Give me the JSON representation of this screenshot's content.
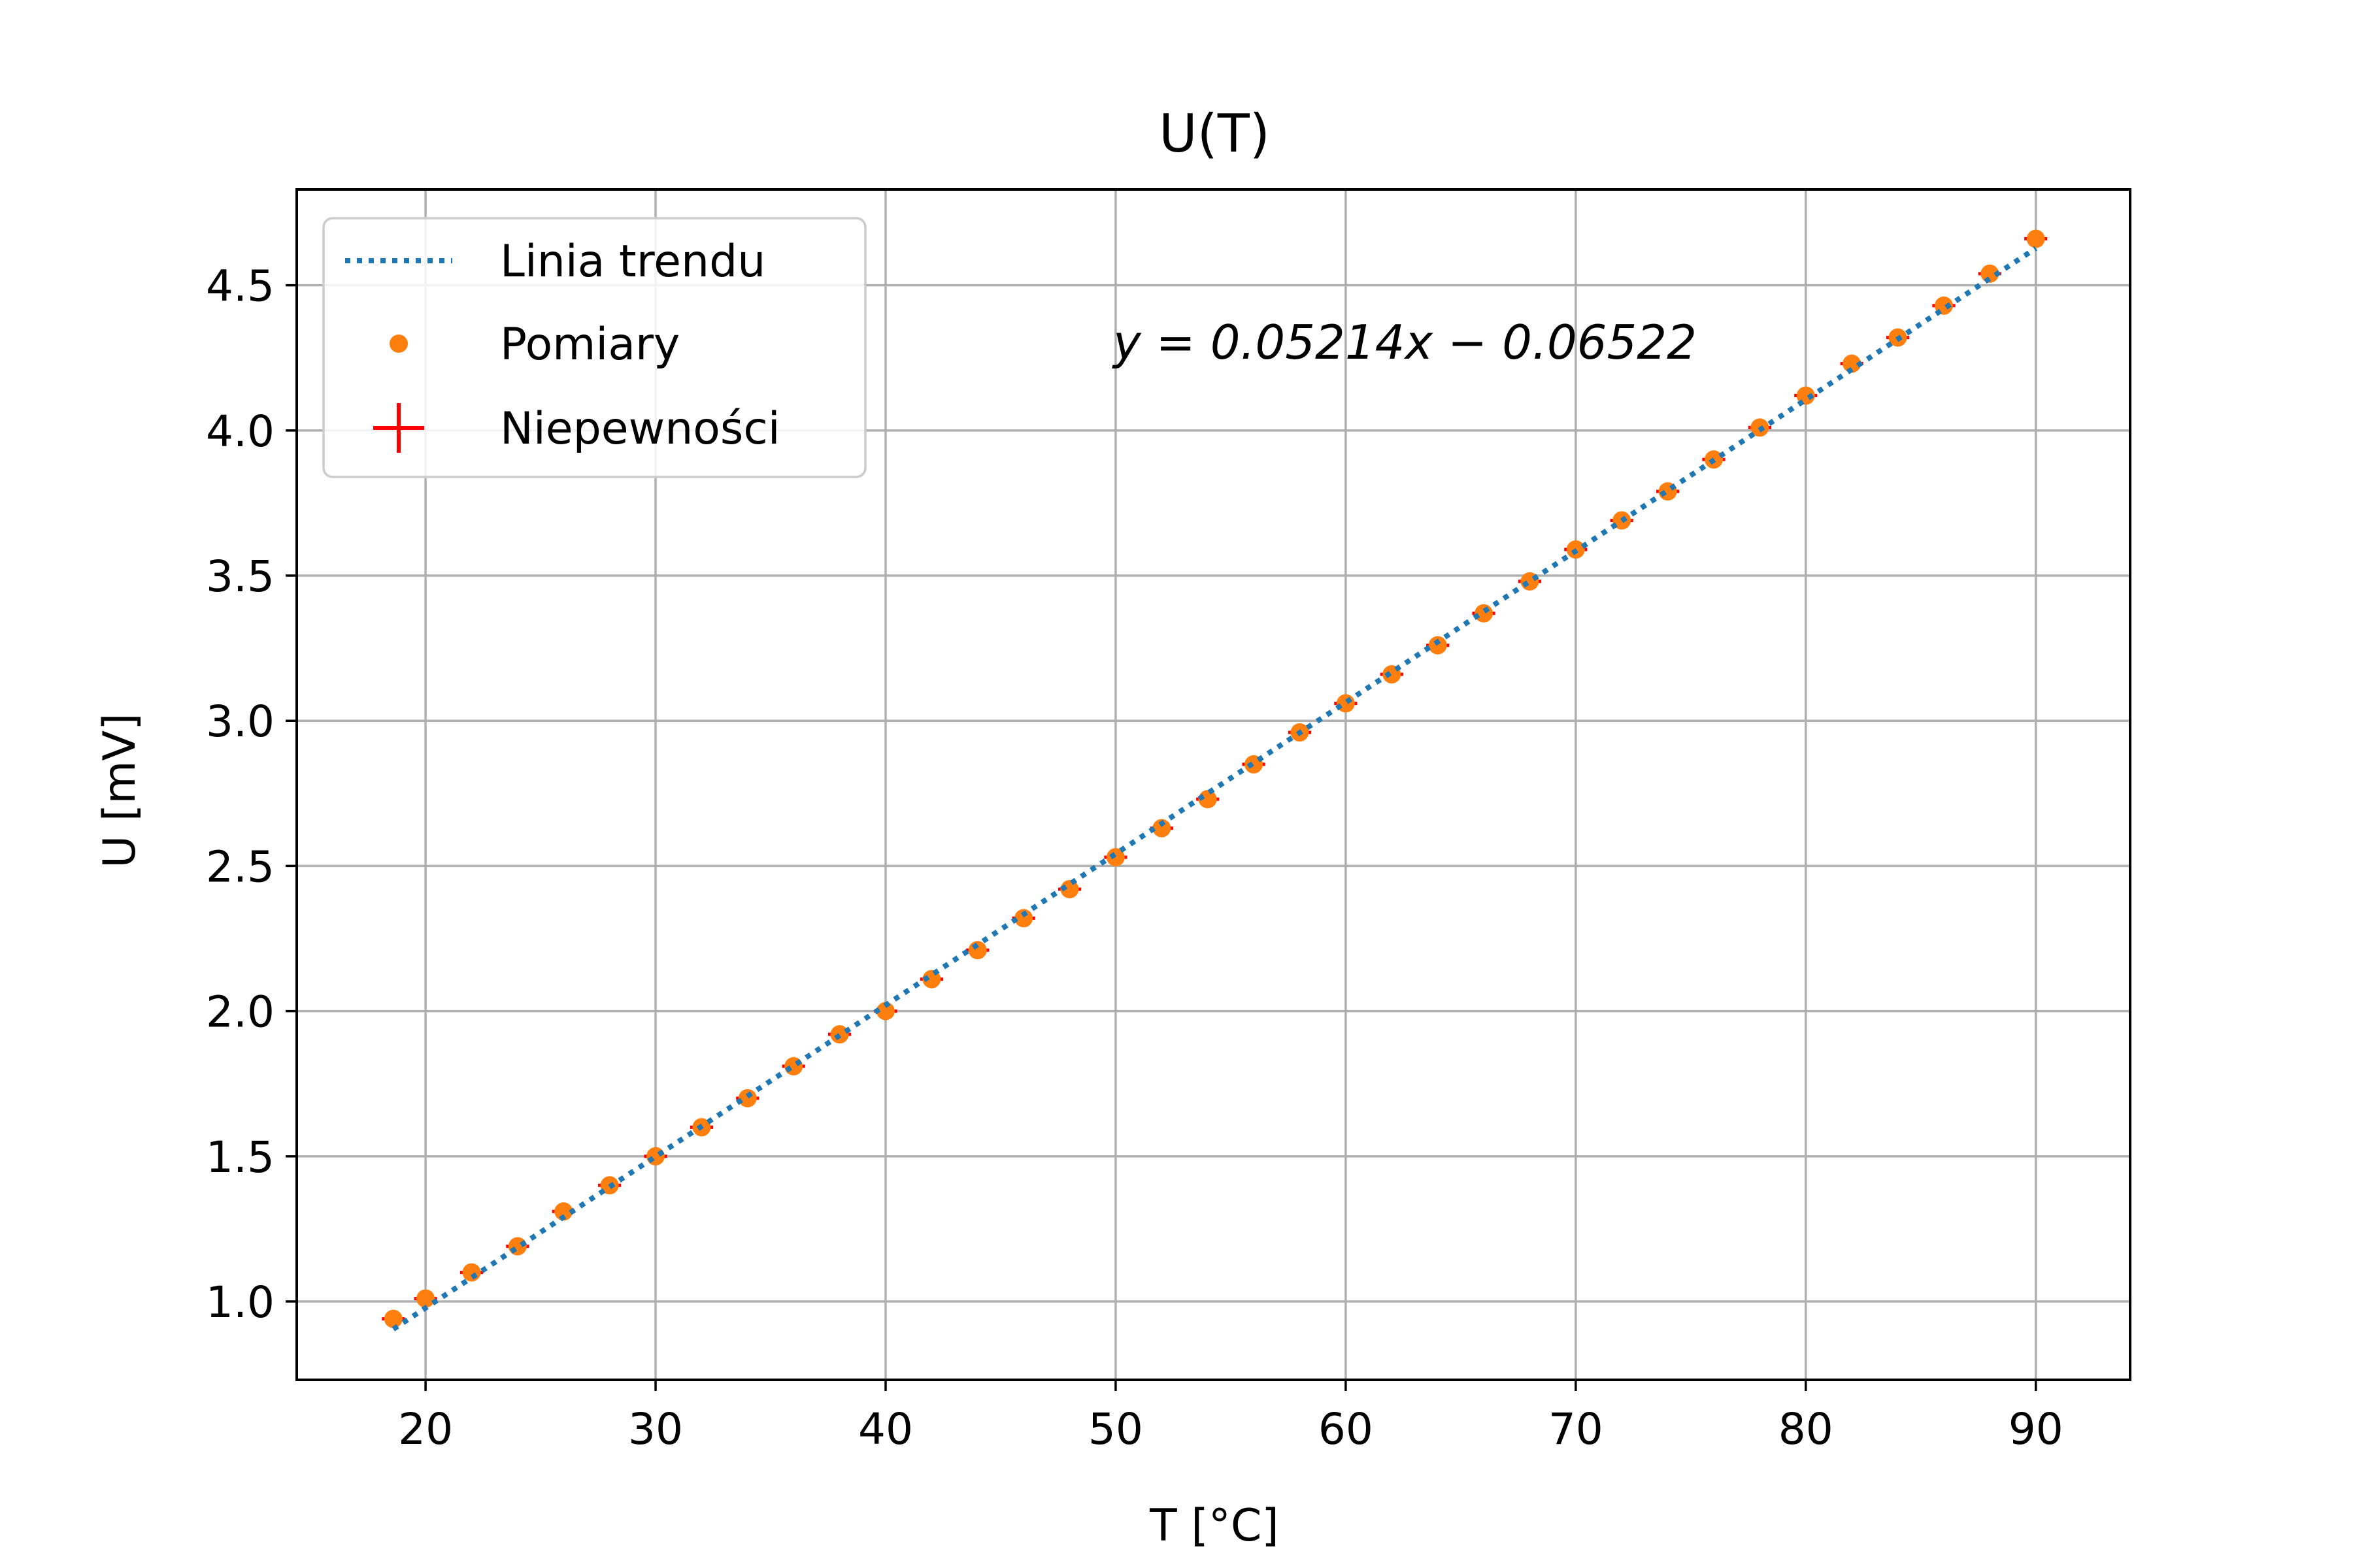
{
  "chart_data": {
    "type": "scatter",
    "title": "U(T)",
    "xlabel": "T [°C]",
    "ylabel": "U [mV]",
    "xlim": [
      14.4,
      94.1
    ],
    "ylim": [
      0.73,
      4.83
    ],
    "xticks": [
      "20",
      "30",
      "40",
      "50",
      "60",
      "70",
      "80",
      "90"
    ],
    "yticks": [
      "1.0",
      "1.5",
      "2.0",
      "2.5",
      "3.0",
      "3.5",
      "4.0",
      "4.5"
    ],
    "grid": true,
    "legend_position": "top-left",
    "equation": "y = 0.05214x − 0.06522",
    "trendline": {
      "name": "Linia trendu",
      "slope": 0.05214,
      "intercept": -0.06522,
      "x_range": [
        18.6,
        90
      ],
      "color": "#1f77b4",
      "style": "dotted"
    },
    "series": [
      {
        "name": "Pomiary",
        "color": "#ff7f0e",
        "x": [
          18.6,
          20,
          22,
          24,
          26,
          28,
          30,
          32,
          34,
          36,
          38,
          40,
          42,
          44,
          46,
          48,
          50,
          52,
          54,
          56,
          58,
          60,
          62,
          64,
          66,
          68,
          70,
          72,
          74,
          76,
          78,
          80,
          82,
          84,
          86,
          88,
          90
        ],
        "y": [
          0.94,
          1.01,
          1.1,
          1.19,
          1.31,
          1.4,
          1.5,
          1.6,
          1.7,
          1.81,
          1.92,
          2.0,
          2.11,
          2.21,
          2.32,
          2.42,
          2.53,
          2.63,
          2.73,
          2.85,
          2.96,
          3.06,
          3.16,
          3.26,
          3.37,
          3.48,
          3.59,
          3.69,
          3.79,
          3.9,
          4.01,
          4.12,
          4.23,
          4.32,
          4.43,
          4.54,
          4.66
        ]
      }
    ],
    "uncertainties": {
      "name": "Niepewności",
      "color": "#ff0000",
      "x_err": 0.5,
      "y_err": 0.005
    }
  }
}
